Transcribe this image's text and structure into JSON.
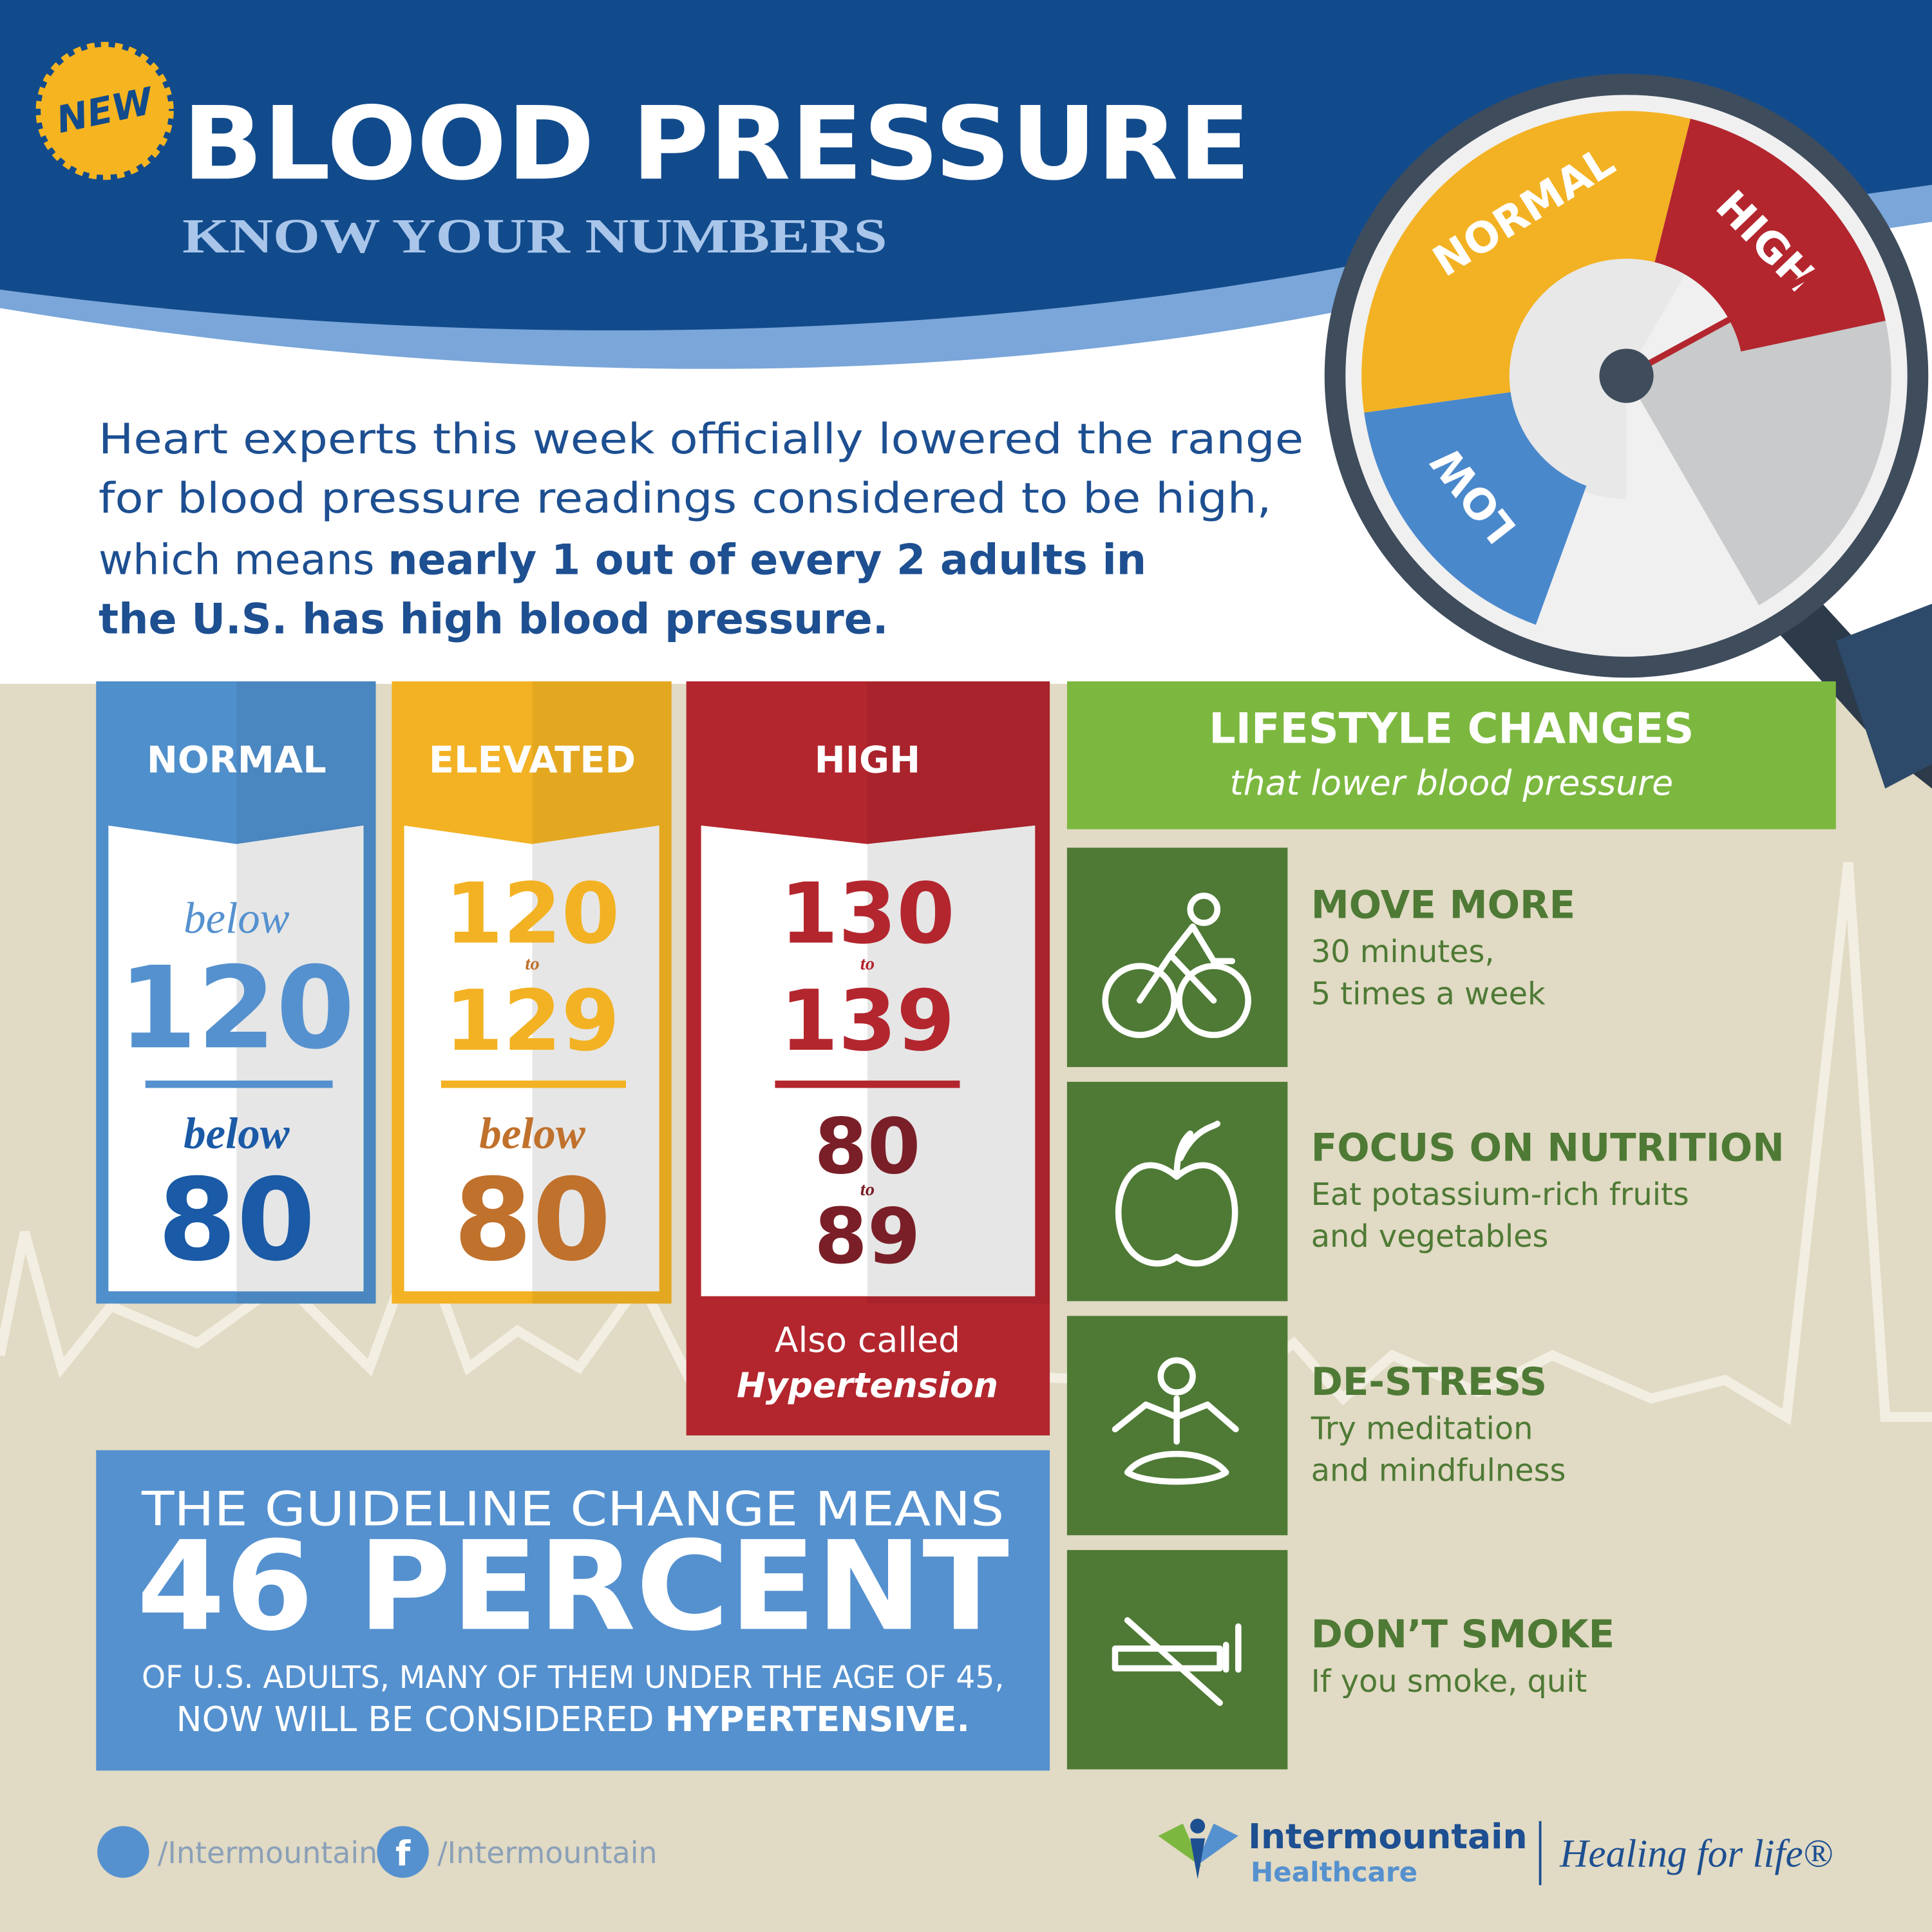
{
  "header": {
    "badge": "NEW",
    "title": "BLOOD PRESSURE",
    "subtitle": "KNOW YOUR NUMBERS"
  },
  "gauge": {
    "normal": "NORMAL",
    "high": "HIGH",
    "low": "LOW"
  },
  "intro": {
    "lines": [
      "Heart experts this week officially lowered the range",
      "for blood pressure readings considered to be high,",
      "which means "
    ],
    "bold": [
      "nearly 1 out of every 2 adults in",
      "the U.S. has high blood pressure."
    ]
  },
  "cards": [
    {
      "title": "NORMAL",
      "top_prefix": "below",
      "top": "120",
      "bottom_prefix": "below",
      "bottom": "80"
    },
    {
      "title": "ELEVATED",
      "top": "120",
      "top_to": "to",
      "top2": "129",
      "bottom_prefix": "below",
      "bottom": "80"
    },
    {
      "title": "HIGH",
      "top": "130",
      "top_to": "to",
      "top2": "139",
      "bottom": "80",
      "bottom_to": "to",
      "bottom2": "89",
      "note": "Also called",
      "note_bold": "Hypertension"
    }
  ],
  "stat": {
    "line1": "THE GUIDELINE CHANGE MEANS",
    "big": "46 PERCENT",
    "line2": "OF U.S. ADULTS, MANY OF THEM UNDER THE AGE OF 45,",
    "line3": "NOW WILL BE CONSIDERED ",
    "line3_bold": "HYPERTENSIVE."
  },
  "lifestyle": {
    "title": "LIFESTYLE CHANGES",
    "subtitle": "that lower blood pressure",
    "items": [
      {
        "title": "MOVE MORE",
        "lines": [
          "30 minutes,",
          "5 times a week"
        ]
      },
      {
        "title": "FOCUS ON NUTRITION",
        "lines": [
          "Eat potassium-rich fruits",
          "and vegetables"
        ]
      },
      {
        "title": "DE-STRESS",
        "lines": [
          "Try meditation",
          "and mindfulness"
        ]
      },
      {
        "title": "DON’T SMOKE",
        "lines": [
          "If you smoke, quit"
        ]
      }
    ]
  },
  "footer": {
    "twitter": "/Intermountain",
    "facebook": "/Intermountain",
    "brand": "Intermountain",
    "brand_sub": "Healthcare",
    "tagline": "Healing for life®"
  }
}
